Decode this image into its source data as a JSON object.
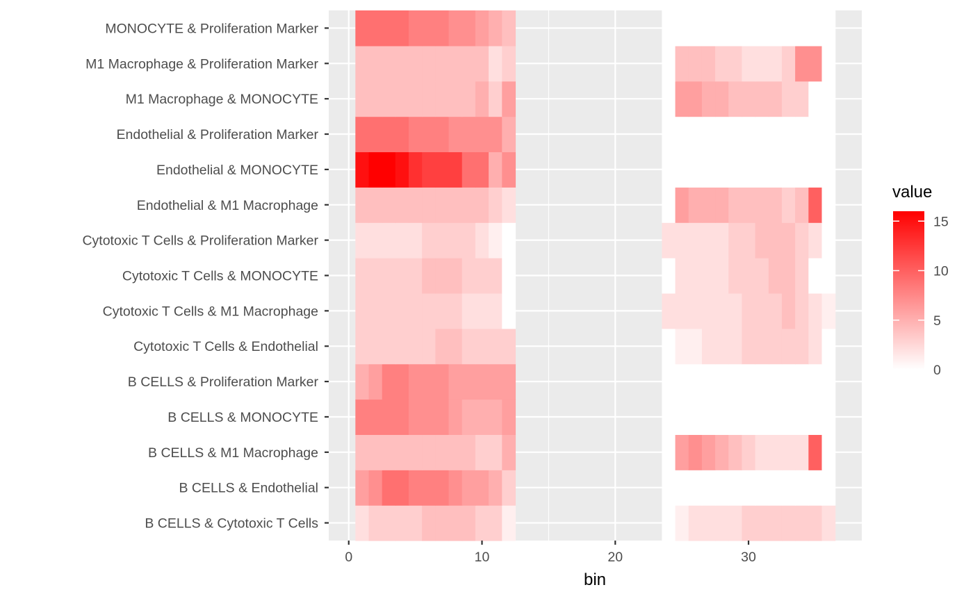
{
  "chart_data": {
    "type": "heatmap",
    "title": "",
    "xlabel": "bin",
    "ylabel": "",
    "xlim": [
      -1.5,
      38.5
    ],
    "x_ticks": [
      0,
      10,
      20,
      30
    ],
    "x_tick_labels": [
      "0",
      "10",
      "20",
      "30"
    ],
    "x": [
      1,
      2,
      3,
      4,
      5,
      6,
      7,
      8,
      9,
      10,
      11,
      12,
      24,
      25,
      26,
      27,
      28,
      29,
      30,
      31,
      32,
      33,
      34,
      35,
      36
    ],
    "categories": [
      "B CELLS & Cytotoxic T Cells",
      "B CELLS & Endothelial",
      "B CELLS & M1 Macrophage",
      "B CELLS & MONOCYTE",
      "B CELLS & Proliferation Marker",
      "Cytotoxic T Cells & Endothelial",
      "Cytotoxic T Cells & M1 Macrophage",
      "Cytotoxic T Cells & MONOCYTE",
      "Cytotoxic T Cells & Proliferation Marker",
      "Endothelial & M1 Macrophage",
      "Endothelial & MONOCYTE",
      "Endothelial & Proliferation Marker",
      "M1 Macrophage & MONOCYTE",
      "M1 Macrophage & Proliferation Marker",
      "MONOCYTE & Proliferation Marker"
    ],
    "values": [
      [
        2,
        3,
        3,
        3,
        3,
        4,
        4,
        4,
        4,
        3,
        3,
        1,
        0,
        1,
        2,
        2,
        2,
        2,
        3,
        3,
        3,
        3,
        3,
        3,
        2
      ],
      [
        6,
        7,
        9,
        9,
        8,
        8,
        8,
        7,
        6,
        6,
        5,
        3,
        0,
        0,
        0,
        0,
        0,
        0,
        0,
        0,
        0,
        0,
        0,
        0,
        0
      ],
      [
        4,
        4,
        4,
        4,
        4,
        4,
        4,
        4,
        4,
        3,
        3,
        5,
        0,
        6,
        7,
        6,
        5,
        4,
        3,
        2,
        2,
        2,
        2,
        10,
        0
      ],
      [
        8,
        8,
        8,
        8,
        7,
        7,
        7,
        6,
        5,
        5,
        5,
        6,
        0,
        0,
        0,
        0,
        0,
        0,
        0,
        0,
        0,
        0,
        0,
        0,
        0
      ],
      [
        5,
        6,
        8,
        8,
        7,
        7,
        7,
        6,
        6,
        6,
        6,
        6,
        0,
        0,
        0,
        0,
        0,
        0,
        0,
        0,
        0,
        0,
        0,
        0,
        0
      ],
      [
        3,
        3,
        3,
        3,
        3,
        3,
        4,
        4,
        3,
        3,
        3,
        3,
        0,
        1,
        1,
        2,
        2,
        2,
        3,
        3,
        3,
        3,
        3,
        2,
        0
      ],
      [
        3,
        3,
        3,
        3,
        3,
        3,
        3,
        3,
        2,
        2,
        2,
        0,
        2,
        2,
        2,
        2,
        2,
        2,
        3,
        3,
        3,
        4,
        3,
        2,
        1
      ],
      [
        3,
        3,
        3,
        3,
        3,
        4,
        4,
        4,
        3,
        3,
        3,
        0,
        0,
        2,
        2,
        2,
        2,
        3,
        3,
        3,
        4,
        4,
        3,
        0,
        0
      ],
      [
        2,
        2,
        2,
        2,
        2,
        3,
        3,
        3,
        3,
        2,
        1,
        0,
        2,
        2,
        2,
        2,
        2,
        3,
        3,
        4,
        4,
        4,
        3,
        2,
        0
      ],
      [
        4,
        4,
        4,
        4,
        4,
        4,
        4,
        4,
        4,
        4,
        3,
        2,
        0,
        6,
        5,
        5,
        5,
        4,
        4,
        4,
        4,
        3,
        4,
        10,
        0
      ],
      [
        15,
        16,
        16,
        15,
        13,
        12,
        12,
        12,
        9,
        9,
        5,
        7,
        0,
        0,
        0,
        0,
        0,
        0,
        0,
        0,
        0,
        0,
        0,
        0,
        0
      ],
      [
        9,
        9,
        9,
        9,
        8,
        8,
        8,
        7,
        7,
        7,
        7,
        5,
        0,
        0,
        0,
        0,
        0,
        0,
        0,
        0,
        0,
        0,
        0,
        0,
        0
      ],
      [
        4,
        4,
        4,
        4,
        4,
        4,
        4,
        4,
        4,
        5,
        3,
        6,
        0,
        6,
        6,
        5,
        5,
        4,
        4,
        4,
        4,
        3,
        3,
        0,
        0
      ],
      [
        4,
        4,
        4,
        4,
        4,
        4,
        4,
        4,
        4,
        4,
        2,
        3,
        0,
        4,
        4,
        4,
        3,
        3,
        2,
        2,
        2,
        3,
        7,
        7,
        0
      ],
      [
        9,
        9,
        9,
        9,
        8,
        8,
        8,
        7,
        7,
        6,
        5,
        4,
        0,
        0,
        0,
        0,
        0,
        0,
        0,
        0,
        0,
        0,
        0,
        0,
        0
      ]
    ],
    "color_scale": {
      "low": "#ffffff",
      "high": "#ff0000",
      "domain": [
        0,
        16
      ]
    },
    "grid": true,
    "legend": {
      "title": "value",
      "placement": "right",
      "ticks": [
        0,
        5,
        10,
        15
      ],
      "tick_labels": [
        "0",
        "5",
        "10",
        "15"
      ]
    }
  }
}
